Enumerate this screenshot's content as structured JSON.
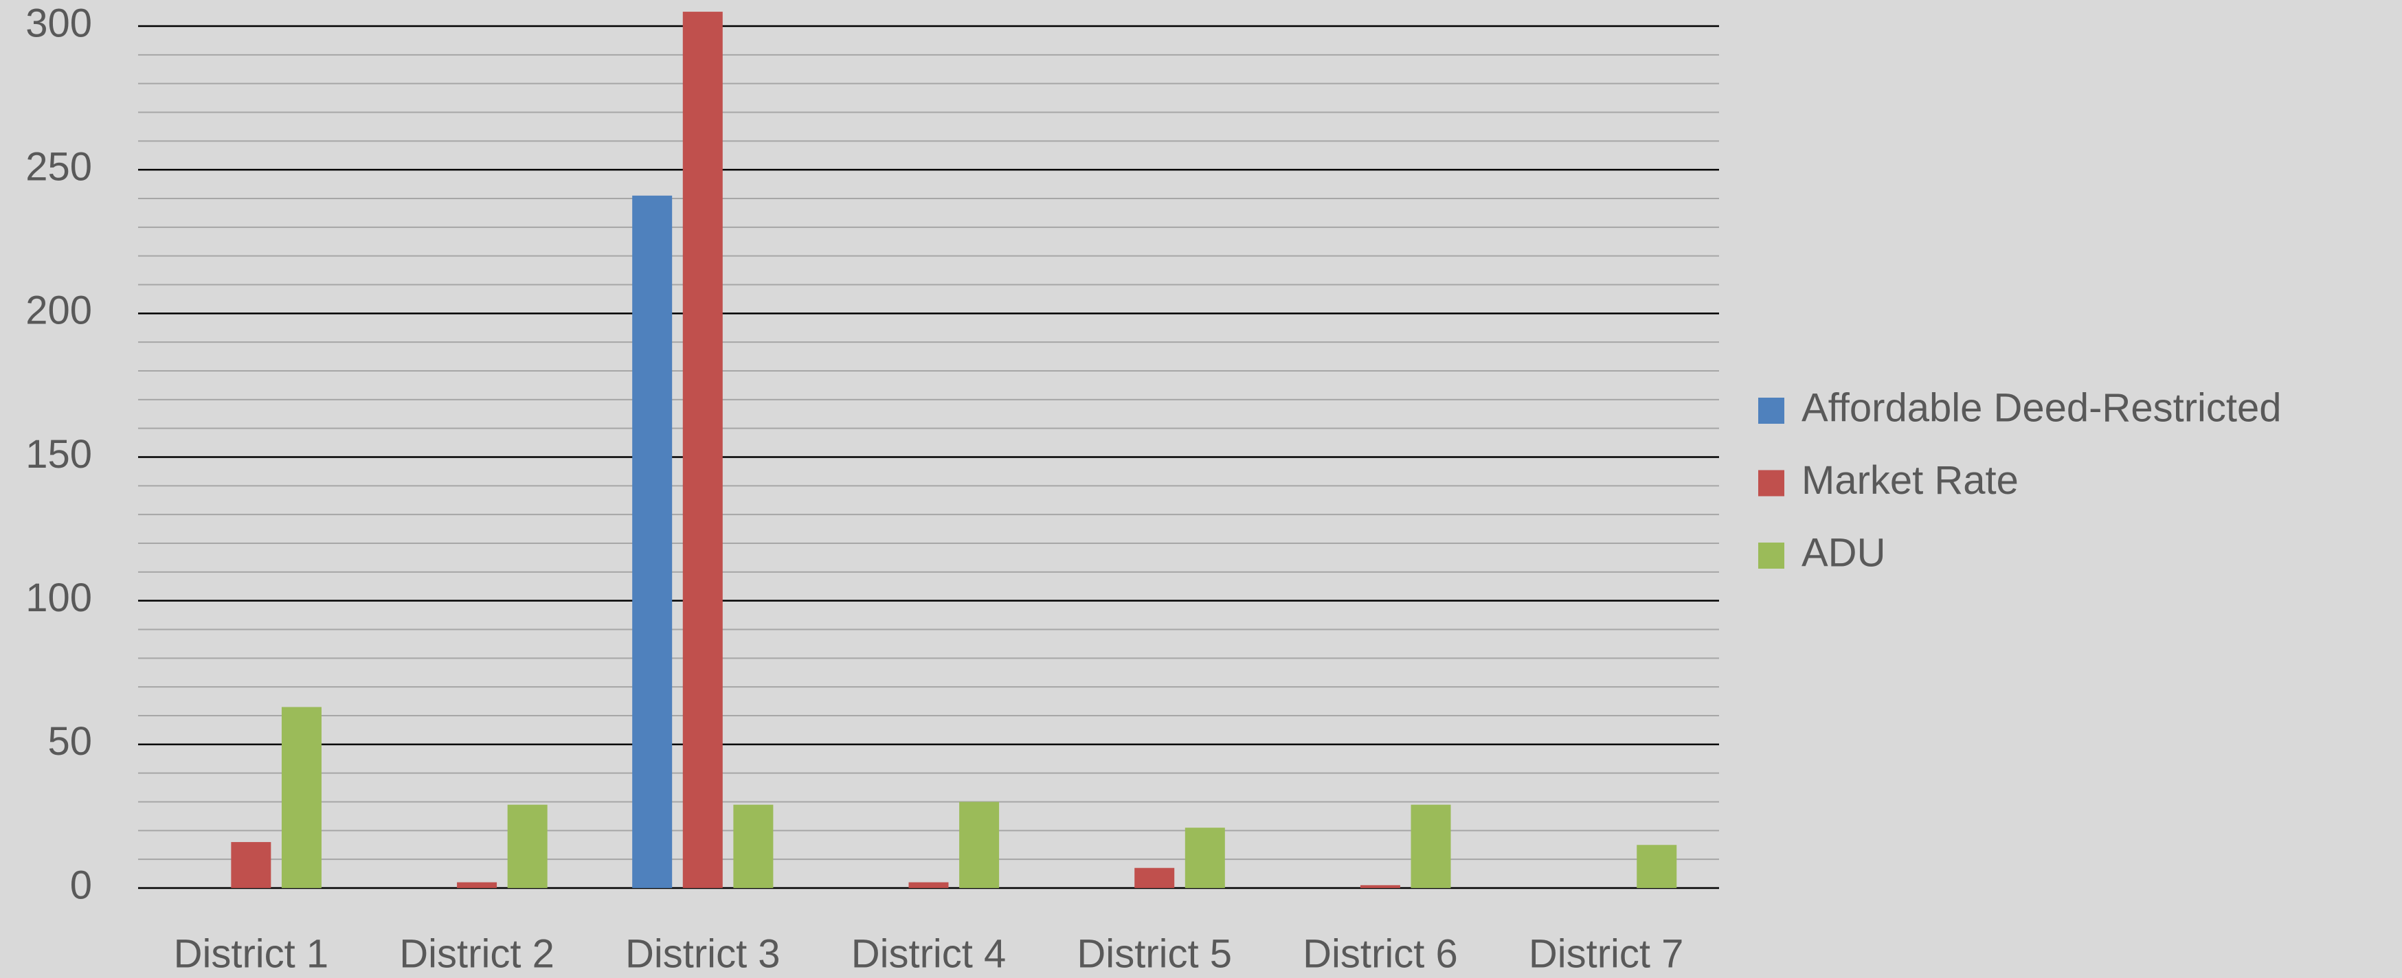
{
  "chart_data": {
    "type": "bar",
    "categories": [
      "District 1",
      "District 2",
      "District 3",
      "District 4",
      "District 5",
      "District 6",
      "District 7"
    ],
    "series": [
      {
        "name": "Affordable Deed-Restricted",
        "color": "#4f81bd",
        "values": [
          0,
          0,
          241,
          0,
          0,
          0,
          0
        ]
      },
      {
        "name": "Market Rate",
        "color": "#c0504d",
        "values": [
          16,
          2,
          305,
          2,
          7,
          1,
          0
        ]
      },
      {
        "name": "ADU",
        "color": "#9bbb59",
        "values": [
          63,
          29,
          29,
          30,
          21,
          29,
          15
        ]
      }
    ],
    "ylim": [
      0,
      300
    ],
    "yticks": [
      0,
      50,
      100,
      150,
      200,
      250,
      300
    ],
    "minor_yticks": [
      10,
      20,
      30,
      40,
      60,
      70,
      80,
      90,
      110,
      120,
      130,
      140,
      160,
      170,
      180,
      190,
      210,
      220,
      230,
      240,
      260,
      270,
      280,
      290
    ],
    "grid": true,
    "legend": "right"
  }
}
